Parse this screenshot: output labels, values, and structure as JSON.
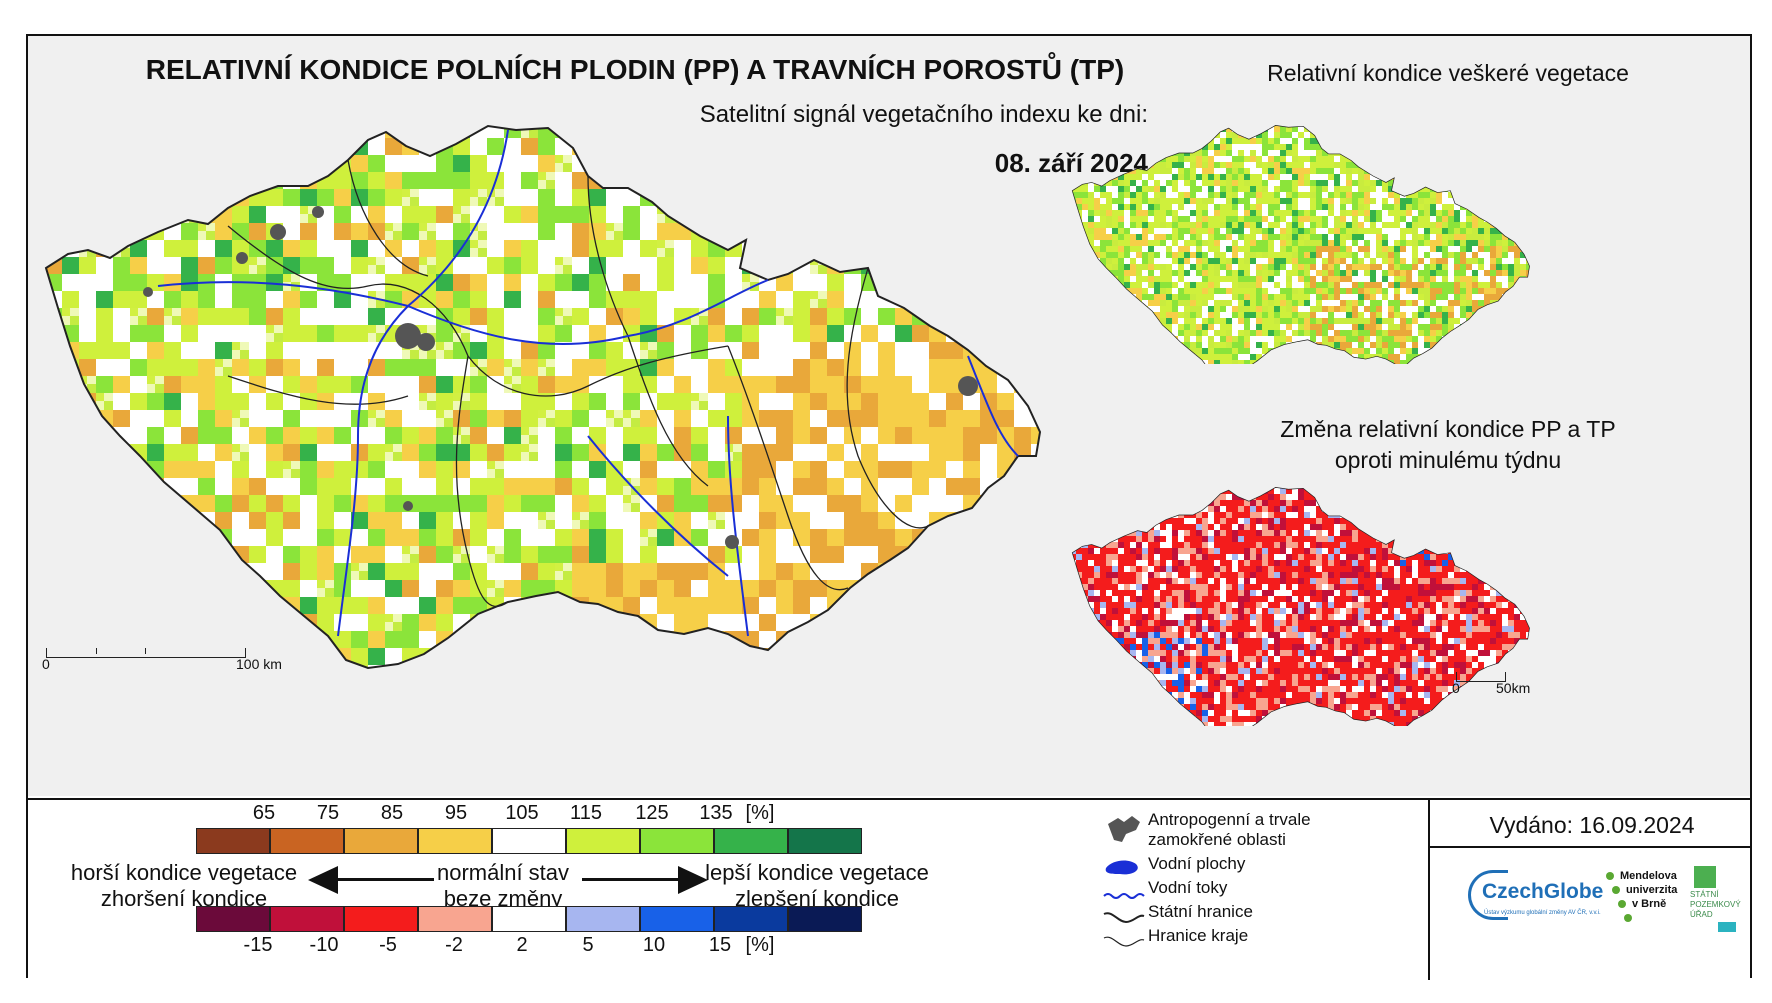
{
  "title": "RELATIVNÍ KONDICE POLNÍCH PLODIN (PP) A TRAVNÍCH POROSTŮ (TP)",
  "subtitle": "Satelitní signál vegetačního indexu ke dni:",
  "date": "08. září 2024",
  "right_top_title": "Relativní kondice veškeré vegetace",
  "right_bottom_title_line1": "Změna relativní kondice PP a TP",
  "right_bottom_title_line2": "oproti minulému týdnu",
  "main_scale": {
    "left": "0",
    "right": "100 km"
  },
  "small_scale": {
    "left": "0",
    "right": "50km"
  },
  "legend": {
    "top_ticks": [
      "65",
      "75",
      "85",
      "95",
      "105",
      "115",
      "125",
      "135",
      "[%]"
    ],
    "top_colors": [
      "#8b3a1e",
      "#c96422",
      "#e9a83a",
      "#f6cf48",
      "#ffffff",
      "#cff03c",
      "#8be43a",
      "#35b24a",
      "#14754a"
    ],
    "bottom_ticks": [
      "-15",
      "-10",
      "-5",
      "-2",
      "2",
      "5",
      "10",
      "15",
      "[%]"
    ],
    "bottom_colors": [
      "#6b0a3a",
      "#c0103a",
      "#f41c1c",
      "#f8a590",
      "#ffffff",
      "#a7b6f0",
      "#1861e8",
      "#0a3a9e",
      "#0a1a55"
    ],
    "worse_1": "horší kondice vegetace",
    "worse_2": "zhoršení kondice",
    "normal_1": "normální stav",
    "normal_2": "beze změny",
    "better_1": "lepší kondice vegetace",
    "better_2": "zlepšení kondice"
  },
  "symbols": {
    "anthropogenic_1": "Antropogenní a trvale",
    "anthropogenic_2": "zamokřené oblasti",
    "water_bodies": "Vodní plochy",
    "rivers": "Vodní toky",
    "state_border": "Státní hranice",
    "region_border": "Hranice kraje"
  },
  "issued": "Vydáno: 16.09.2024",
  "logos": {
    "czechglobe": "CzechGlobe",
    "czechglobe_sub": "Ústav výzkumu globální změny AV ČR, v.v.i.",
    "mendel_1": "Mendelova",
    "mendel_2": "univerzita",
    "mendel_3": "v Brně",
    "spu_1": "STÁTNÍ",
    "spu_2": "POZEMKOVÝ",
    "spu_3": "ÚŘAD"
  },
  "colors": {
    "river": "#1a2fd6",
    "border": "#222222",
    "urban": "#555555"
  }
}
